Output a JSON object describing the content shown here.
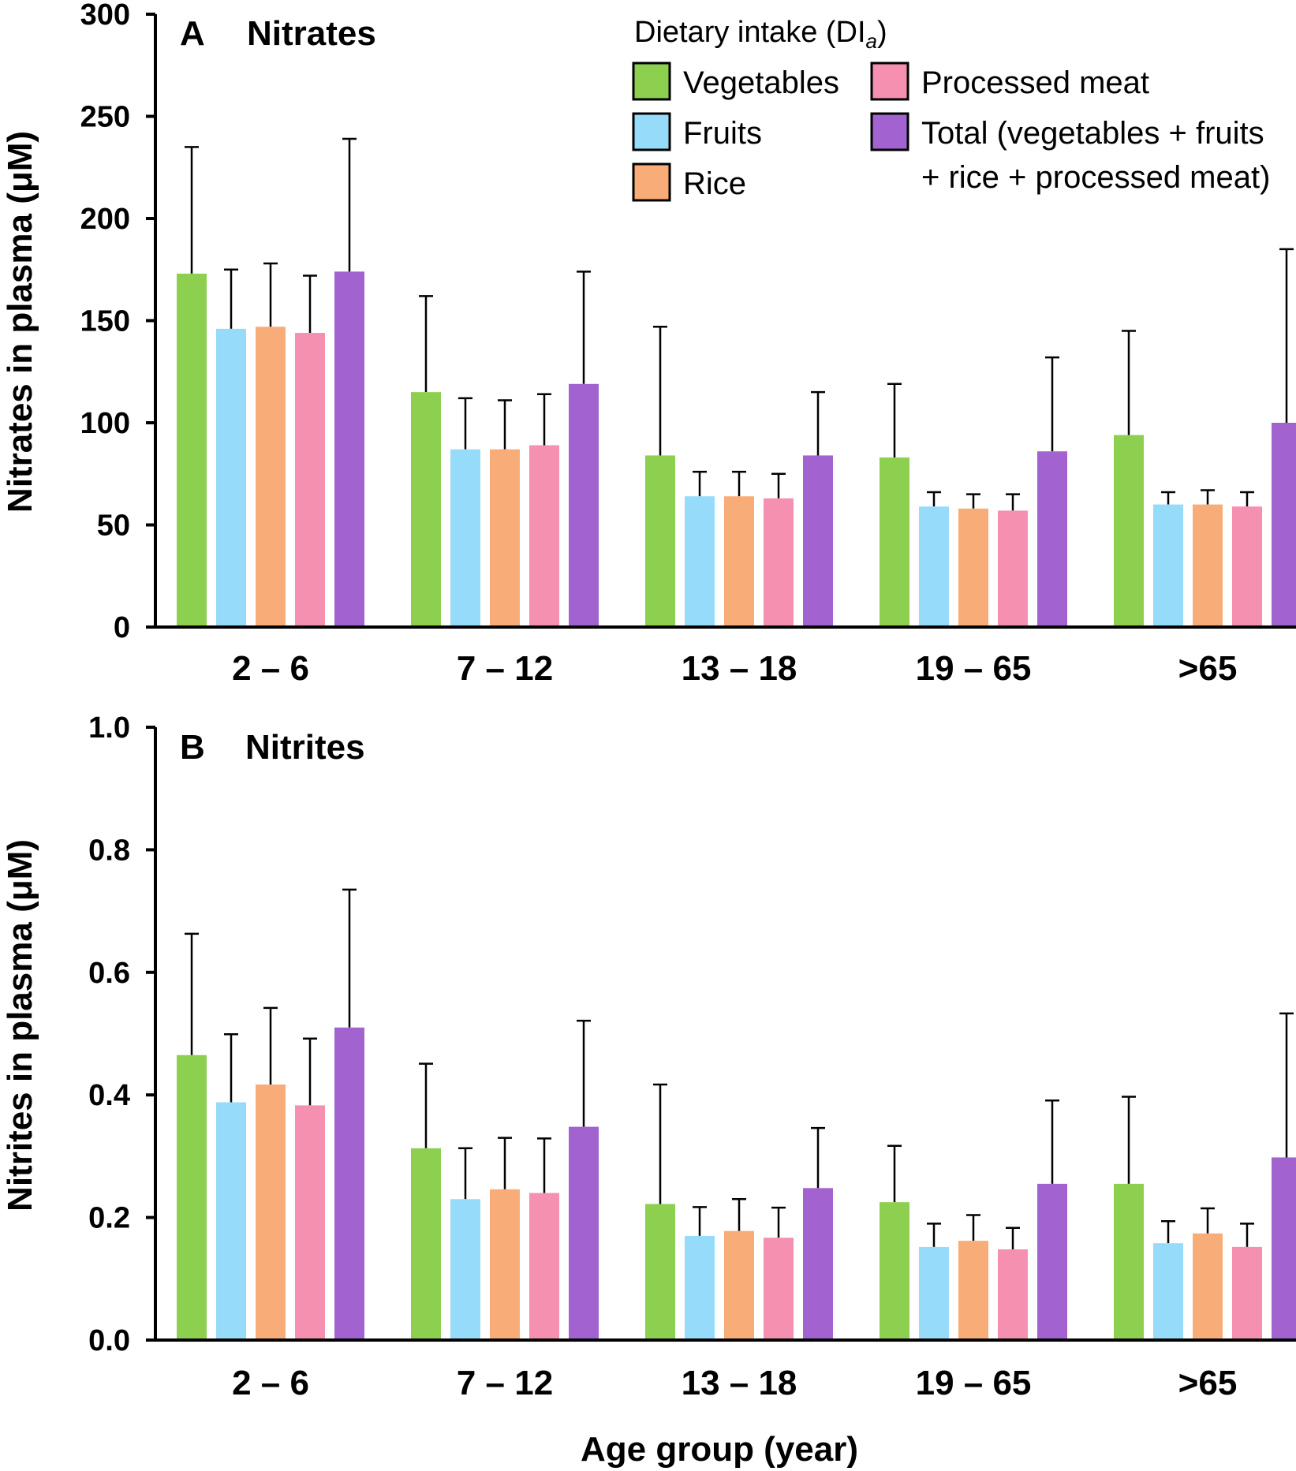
{
  "legend": {
    "title": "Dietary intake (DI",
    "title_sub": "a",
    "title_close": ")",
    "entries": [
      {
        "label": "Vegetables",
        "color": "#8dd04f"
      },
      {
        "label": "Fruits",
        "color": "#96dcfa"
      },
      {
        "label": "Rice",
        "color": "#f8ad78"
      },
      {
        "label": "Processed meat",
        "color": "#f690b0"
      },
      {
        "label": "Total (vegetables + fruits",
        "label_line2": "+ rice + processed meat)",
        "color": "#a262d0"
      }
    ]
  },
  "xlabel": "Age group (year)",
  "chart_data": [
    {
      "type": "bar",
      "panel_letter": "A",
      "title": "Nitrates",
      "ylabel": "Nitrates in plasma (μM)",
      "ylim": [
        0,
        300
      ],
      "yticks": [
        "0",
        "50",
        "100",
        "150",
        "200",
        "250",
        "300"
      ],
      "categories": [
        "2 – 6",
        "7 – 12",
        "13 – 18",
        "19 – 65",
        ">65"
      ],
      "series": [
        {
          "name": "Vegetables",
          "values": [
            173,
            115,
            84,
            83,
            94
          ],
          "errors": [
            62,
            47,
            63,
            36,
            51
          ]
        },
        {
          "name": "Fruits",
          "values": [
            146,
            87,
            64,
            59,
            60
          ],
          "errors": [
            29,
            25,
            12,
            7,
            6
          ]
        },
        {
          "name": "Rice",
          "values": [
            147,
            87,
            64,
            58,
            60
          ],
          "errors": [
            31,
            24,
            12,
            7,
            7
          ]
        },
        {
          "name": "Processed meat",
          "values": [
            144,
            89,
            63,
            57,
            59
          ],
          "errors": [
            28,
            25,
            12,
            8,
            7
          ]
        },
        {
          "name": "Total (vegetables + fruits + rice + processed meat)",
          "values": [
            174,
            119,
            84,
            86,
            100
          ],
          "errors": [
            65,
            55,
            31,
            46,
            85
          ]
        }
      ]
    },
    {
      "type": "bar",
      "panel_letter": "B",
      "title": "Nitrites",
      "ylabel": "Nitrites in plasma (μM)",
      "ylim": [
        0,
        1.0
      ],
      "yticks": [
        "0.0",
        "0.2",
        "0.4",
        "0.6",
        "0.8",
        "1.0"
      ],
      "categories": [
        "2 – 6",
        "7 – 12",
        "13 – 18",
        "19 – 65",
        ">65"
      ],
      "series": [
        {
          "name": "Vegetables",
          "values": [
            0.465,
            0.313,
            0.222,
            0.225,
            0.255
          ],
          "errors": [
            0.198,
            0.138,
            0.195,
            0.092,
            0.142
          ]
        },
        {
          "name": "Fruits",
          "values": [
            0.388,
            0.23,
            0.17,
            0.152,
            0.158
          ],
          "errors": [
            0.111,
            0.083,
            0.047,
            0.038,
            0.036
          ]
        },
        {
          "name": "Rice",
          "values": [
            0.417,
            0.246,
            0.178,
            0.162,
            0.174
          ],
          "errors": [
            0.125,
            0.084,
            0.052,
            0.042,
            0.041
          ]
        },
        {
          "name": "Processed meat",
          "values": [
            0.383,
            0.24,
            0.167,
            0.148,
            0.152
          ],
          "errors": [
            0.109,
            0.089,
            0.049,
            0.035,
            0.038
          ]
        },
        {
          "name": "Total (vegetables + fruits + rice + processed meat)",
          "values": [
            0.51,
            0.348,
            0.248,
            0.255,
            0.298
          ],
          "errors": [
            0.225,
            0.173,
            0.098,
            0.136,
            0.235
          ]
        }
      ]
    }
  ]
}
